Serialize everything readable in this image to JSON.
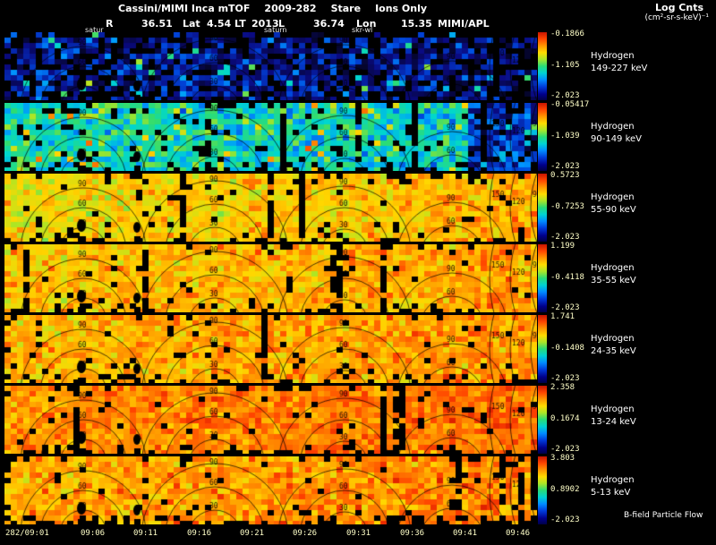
{
  "header": {
    "title": {
      "instrument": "Cassini/MIMI Inca mTOF",
      "date": "2009-282",
      "mode": "Stare",
      "filter": "Ions Only"
    },
    "colorbar_title": "Log Cnts",
    "colorbar_units": "(cm²-sr-s-keV)⁻¹",
    "ephemeris": [
      {
        "label": "R",
        "value": "36.51"
      },
      {
        "label": "Lat",
        "value": "4.54"
      },
      {
        "label": "LT",
        "value": "2013"
      },
      {
        "label": "L",
        "value": "36.74"
      },
      {
        "label": "Lon",
        "value": "15.35"
      }
    ],
    "credit": "MIMI/APL"
  },
  "annotations": [
    "satur",
    "saturn",
    "skr-wl"
  ],
  "contour_labels": [
    "30",
    "60",
    "90",
    "120",
    "150"
  ],
  "x_axis": {
    "ticks": [
      "282/09:01",
      "09:06",
      "09:11",
      "09:16",
      "09:21",
      "09:26",
      "09:31",
      "09:36",
      "09:41",
      "09:46"
    ]
  },
  "panels": [
    {
      "species": "Hydrogen",
      "energy": "149-227 keV",
      "cb": {
        "max": "-0.1866",
        "mid": "-1.105",
        "min": "-2.023"
      }
    },
    {
      "species": "Hydrogen",
      "energy": "90-149 keV",
      "cb": {
        "max": "-0.05417",
        "mid": "-1.039",
        "min": "-2.023"
      }
    },
    {
      "species": "Hydrogen",
      "energy": "55-90 keV",
      "cb": {
        "max": "0.5723",
        "mid": "-0.7253",
        "min": "-2.023"
      }
    },
    {
      "species": "Hydrogen",
      "energy": "35-55 keV",
      "cb": {
        "max": "1.199",
        "mid": "-0.4118",
        "min": "-2.023"
      }
    },
    {
      "species": "Hydrogen",
      "energy": "24-35 keV",
      "cb": {
        "max": "1.741",
        "mid": "-0.1408",
        "min": "-2.023"
      }
    },
    {
      "species": "Hydrogen",
      "energy": "13-24 keV",
      "cb": {
        "max": "2.358",
        "mid": "0.1674",
        "min": "-2.023"
      }
    },
    {
      "species": "Hydrogen",
      "energy": "5-13 keV",
      "cb": {
        "max": "3.803",
        "mid": "0.8902",
        "min": "-2.023"
      },
      "note": "B-field Particle Flow"
    }
  ],
  "colors": {
    "background": "#000000",
    "text": "#ffffff",
    "tick_label": "#ffffc8"
  },
  "chart_data": {
    "type": "heatmap",
    "title": "Cassini/MIMI Inca mTOF 2009-282 Stare Ions Only",
    "subtitle": "R 36.51 Lat 4.54 LT 2013 L 36.74 Lon 15.35 MIMI/APL",
    "colorbar_label": "Log Cnts (cm²-sr-s-keV)⁻¹",
    "x_ticks": [
      "282/09:01",
      "09:06",
      "09:11",
      "09:16",
      "09:21",
      "09:26",
      "09:31",
      "09:36",
      "09:41",
      "09:46"
    ],
    "contour_levels": [
      30,
      60,
      90,
      120,
      150
    ],
    "legend_position": "right",
    "panels": [
      {
        "series": "Hydrogen 149-227 keV",
        "colorbar_max": -0.1866,
        "colorbar_mid": -1.105,
        "colorbar_min": -2.023,
        "dominant_palette": "black with dark-blue/cyan speckle",
        "render": {
          "mean": 0.12,
          "spread": 0.09,
          "black": 0.3,
          "trend": -0.04,
          "speckle": 0.05,
          "top_gap": 0.6,
          "bottom_gap": 0.15,
          "right_dark": false
        }
      },
      {
        "series": "Hydrogen 90-149 keV",
        "colorbar_max": -0.05417,
        "colorbar_mid": -1.039,
        "colorbar_min": -2.023,
        "dominant_palette": "cyan/teal-green with blue patches",
        "render": {
          "mean": 0.42,
          "spread": 0.1,
          "black": 0.07,
          "trend": -0.05,
          "speckle": 0.04,
          "top_gap": 0.12,
          "bottom_gap": 0.2,
          "right_dark": true
        }
      },
      {
        "series": "Hydrogen 55-90 keV",
        "colorbar_max": 0.5723,
        "colorbar_mid": -0.7253,
        "colorbar_min": -2.023,
        "dominant_palette": "orange-yellow",
        "render": {
          "mean": 0.72,
          "spread": 0.07,
          "black": 0.05,
          "trend": 0.08,
          "speckle": 0,
          "top_gap": 0.15,
          "bottom_gap": 0.2,
          "right_dark": false
        }
      },
      {
        "series": "Hydrogen 35-55 keV",
        "colorbar_max": 1.199,
        "colorbar_mid": -0.4118,
        "colorbar_min": -2.023,
        "dominant_palette": "orange-yellow",
        "render": {
          "mean": 0.75,
          "spread": 0.07,
          "black": 0.04,
          "trend": 0.06,
          "speckle": 0,
          "top_gap": 0.06,
          "bottom_gap": 0.2,
          "right_dark": false
        }
      },
      {
        "series": "Hydrogen 24-35 keV",
        "colorbar_max": 1.741,
        "colorbar_mid": -0.1408,
        "colorbar_min": -2.023,
        "dominant_palette": "orange-red",
        "render": {
          "mean": 0.77,
          "spread": 0.07,
          "black": 0.05,
          "trend": 0.06,
          "speckle": 0,
          "top_gap": 0.06,
          "bottom_gap": 0.25,
          "right_dark": false
        }
      },
      {
        "series": "Hydrogen 13-24 keV",
        "colorbar_max": 2.358,
        "colorbar_mid": 0.1674,
        "colorbar_min": -2.023,
        "dominant_palette": "bright red-orange",
        "render": {
          "mean": 0.82,
          "spread": 0.06,
          "black": 0.04,
          "trend": 0.05,
          "speckle": 0,
          "top_gap": 0.06,
          "bottom_gap": 0.25,
          "right_dark": false
        }
      },
      {
        "series": "Hydrogen 5-13 keV",
        "colorbar_max": 3.803,
        "colorbar_mid": 0.8902,
        "colorbar_min": -2.023,
        "dominant_palette": "orange-red with black gaps at bottom",
        "render": {
          "mean": 0.79,
          "spread": 0.07,
          "black": 0.06,
          "trend": 0.05,
          "speckle": 0,
          "top_gap": 0.06,
          "bottom_gap": 0.4,
          "right_dark": false
        }
      }
    ]
  }
}
